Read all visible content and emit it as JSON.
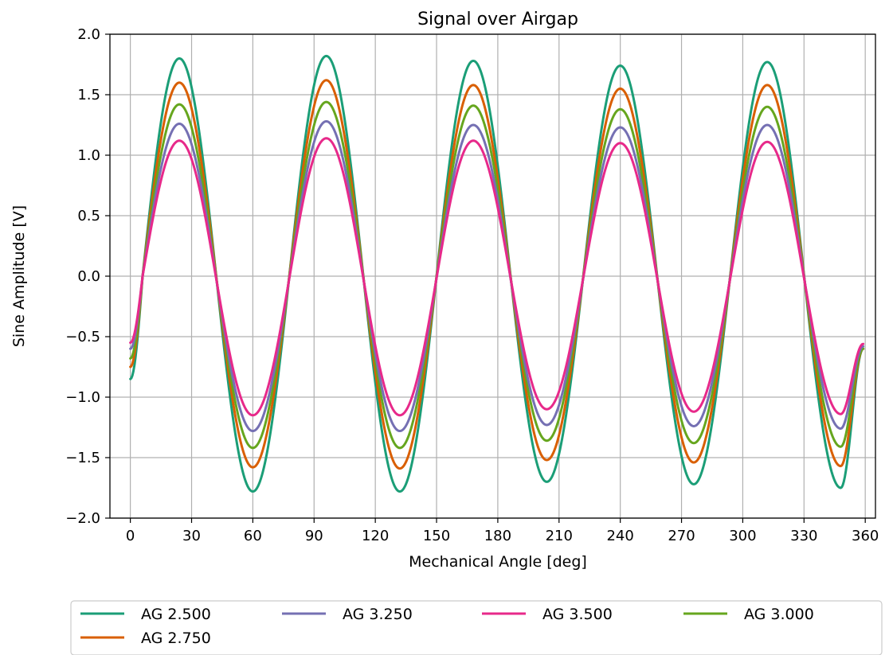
{
  "chart_data": {
    "type": "line",
    "title": "Signal over Airgap",
    "xlabel": "Mechanical Angle [deg]",
    "ylabel": "Sine Amplitude [V]",
    "xlim": [
      -10,
      365
    ],
    "ylim": [
      -2.0,
      2.0
    ],
    "xticks": [
      0,
      30,
      60,
      90,
      120,
      150,
      180,
      210,
      240,
      270,
      300,
      330,
      360
    ],
    "xtick_labels": [
      "0",
      "30",
      "60",
      "90",
      "120",
      "150",
      "180",
      "210",
      "240",
      "270",
      "300",
      "330",
      "360"
    ],
    "yticks": [
      2.0,
      1.5,
      1.0,
      0.5,
      0.0,
      -0.5,
      -1.0,
      -1.5,
      -2.0
    ],
    "ytick_labels": [
      "2.0",
      "1.5",
      "1.0",
      "0.5",
      "0.0",
      "−0.5",
      "−1.0",
      "−1.5",
      "−2.0"
    ],
    "grid": true,
    "legend_position": "bottom-below-axes",
    "waveform": {
      "period_deg": 72,
      "zero_crossing_deg": 6,
      "x_start": 0,
      "x_end": 359
    },
    "series": [
      {
        "name": "AG 2.500",
        "color": "#1b9e77",
        "peaks": [
          [
            24,
            1.8
          ],
          [
            60,
            -1.78
          ],
          [
            96,
            1.82
          ],
          [
            132,
            -1.78
          ],
          [
            168,
            1.78
          ],
          [
            204,
            -1.7
          ],
          [
            240,
            1.74
          ],
          [
            276,
            -1.72
          ],
          [
            312,
            1.77
          ],
          [
            348,
            -1.75
          ]
        ],
        "start_value": -0.85,
        "end_value": -0.6
      },
      {
        "name": "AG 2.750",
        "color": "#d95f02",
        "peaks": [
          [
            24,
            1.6
          ],
          [
            60,
            -1.58
          ],
          [
            96,
            1.62
          ],
          [
            132,
            -1.59
          ],
          [
            168,
            1.58
          ],
          [
            204,
            -1.52
          ],
          [
            240,
            1.55
          ],
          [
            276,
            -1.54
          ],
          [
            312,
            1.58
          ],
          [
            348,
            -1.57
          ]
        ],
        "start_value": -0.75,
        "end_value": -0.6
      },
      {
        "name": "AG 3.250",
        "color": "#7570b3",
        "peaks": [
          [
            24,
            1.26
          ],
          [
            60,
            -1.28
          ],
          [
            96,
            1.28
          ],
          [
            132,
            -1.28
          ],
          [
            168,
            1.25
          ],
          [
            204,
            -1.23
          ],
          [
            240,
            1.23
          ],
          [
            276,
            -1.24
          ],
          [
            312,
            1.25
          ],
          [
            348,
            -1.26
          ]
        ],
        "start_value": -0.6,
        "end_value": -0.58
      },
      {
        "name": "AG 3.500",
        "color": "#e7298a",
        "peaks": [
          [
            24,
            1.12
          ],
          [
            60,
            -1.15
          ],
          [
            96,
            1.14
          ],
          [
            132,
            -1.15
          ],
          [
            168,
            1.12
          ],
          [
            204,
            -1.1
          ],
          [
            240,
            1.1
          ],
          [
            276,
            -1.12
          ],
          [
            312,
            1.11
          ],
          [
            348,
            -1.14
          ]
        ],
        "start_value": -0.55,
        "end_value": -0.56
      },
      {
        "name": "AG 3.000",
        "color": "#66a61e",
        "peaks": [
          [
            24,
            1.42
          ],
          [
            60,
            -1.42
          ],
          [
            96,
            1.44
          ],
          [
            132,
            -1.42
          ],
          [
            168,
            1.41
          ],
          [
            204,
            -1.36
          ],
          [
            240,
            1.38
          ],
          [
            276,
            -1.38
          ],
          [
            312,
            1.4
          ],
          [
            348,
            -1.41
          ]
        ],
        "start_value": -0.68,
        "end_value": -0.6
      }
    ],
    "legend": [
      "AG 2.500",
      "AG 3.250",
      "AG 3.500",
      "AG 3.000",
      "AG 2.750"
    ]
  }
}
